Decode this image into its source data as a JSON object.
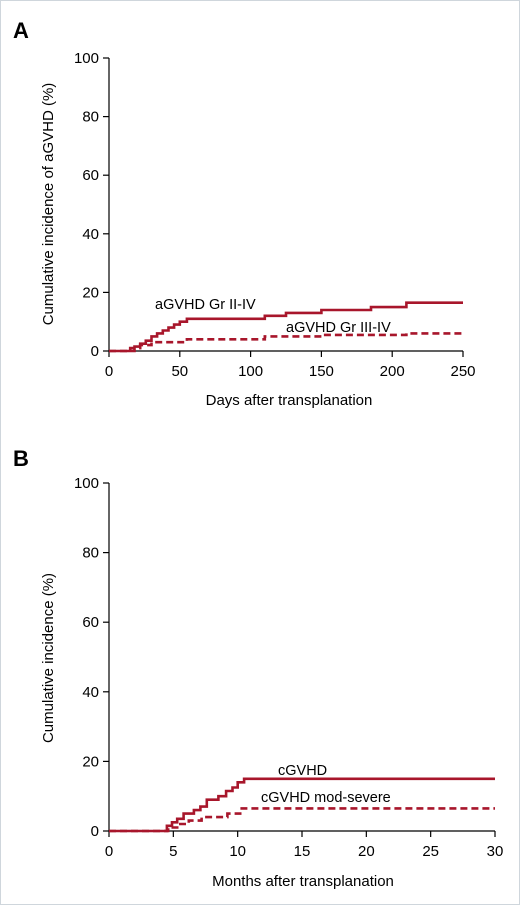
{
  "colors": {
    "series": "#a8162b",
    "axis": "#000000"
  },
  "chart_data": [
    {
      "panel": "A",
      "type": "line",
      "xlabel": "Days after transplanation",
      "ylabel": "Cumulative incidence of aGVHD (%)",
      "xlim": [
        0,
        250
      ],
      "ylim": [
        0,
        100
      ],
      "xticks": [
        0,
        50,
        100,
        150,
        200,
        250
      ],
      "yticks": [
        0,
        20,
        40,
        60,
        80,
        100
      ],
      "step": true,
      "series": [
        {
          "name": "aGVHD Gr II-IV",
          "style": "solid",
          "x": [
            0,
            18,
            22,
            26,
            30,
            34,
            38,
            42,
            46,
            50,
            55,
            110,
            125,
            150,
            185,
            210,
            250
          ],
          "y": [
            0,
            1.5,
            2.5,
            3.5,
            5,
            6,
            7,
            8,
            9,
            10,
            11,
            12,
            13,
            14,
            15,
            16.5,
            16.5
          ]
        },
        {
          "name": "aGVHD Gr III-IV",
          "style": "dashed",
          "x": [
            0,
            15,
            22,
            30,
            55,
            110,
            150,
            210,
            250
          ],
          "y": [
            0,
            1,
            2,
            3,
            4,
            5,
            5.5,
            6,
            6
          ]
        }
      ]
    },
    {
      "panel": "B",
      "type": "line",
      "xlabel": "Months after transplanation",
      "ylabel": "Cumulative incidence (%)",
      "xlim": [
        0,
        30
      ],
      "ylim": [
        0,
        100
      ],
      "xticks": [
        0,
        5,
        10,
        15,
        20,
        25,
        30
      ],
      "yticks": [
        0,
        20,
        40,
        60,
        80,
        100
      ],
      "step": true,
      "series": [
        {
          "name": "cGVHD",
          "style": "solid",
          "x": [
            0,
            4.5,
            4.9,
            5.3,
            5.8,
            6.6,
            7.1,
            7.6,
            8.5,
            9.1,
            9.6,
            10.0,
            10.5,
            30
          ],
          "y": [
            0,
            1.5,
            2.5,
            3.5,
            5,
            6,
            7,
            9,
            10,
            11.5,
            12.5,
            14,
            15,
            15
          ]
        },
        {
          "name": "cGVHD mod-severe",
          "style": "dashed",
          "x": [
            0,
            4.6,
            5.4,
            6.2,
            7.2,
            9.2,
            10.2,
            30
          ],
          "y": [
            0,
            1,
            2,
            3,
            4,
            5,
            6.5,
            6.5
          ]
        }
      ]
    }
  ]
}
